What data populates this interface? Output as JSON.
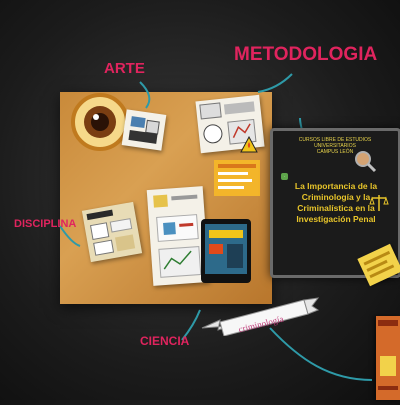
{
  "labels": {
    "arte": "ARTE",
    "metodologia": "METODOLOGIA",
    "disciplina": "DISCIPLINA",
    "ciencia": "CIENCIA"
  },
  "chalkboard": {
    "subtitle": "CURSOS LIBRE DE ESTUDIOS UNIVERSITARIOS",
    "line2": "CAMPUS LEÓN",
    "main_text": "La Importancia de la Criminología y la Criminalística en la Investigación Penal"
  },
  "ribbon": {
    "text": "criminología"
  },
  "colors": {
    "accent": "#e0245e",
    "arrow": "#2e9aa8",
    "chalk_text": "#e8c52a",
    "board": "#d9a052"
  }
}
